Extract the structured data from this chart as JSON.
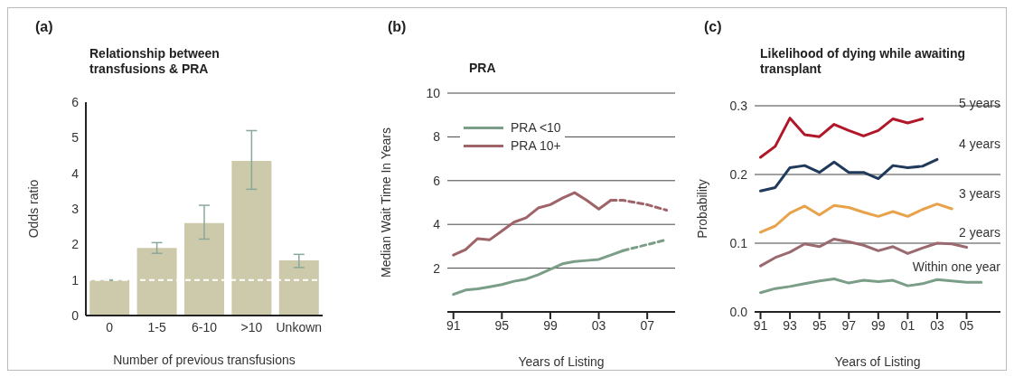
{
  "chart_data": [
    {
      "type": "bar",
      "annotations": [
        "(a)"
      ],
      "title": "Relationship between transfusions & PRA",
      "xlabel": "Number of previous transfusions",
      "ylabel": "Odds ratio",
      "categories": [
        "0",
        "1-5",
        "6-10",
        ">10",
        "Unkown"
      ],
      "values": [
        1.0,
        1.9,
        2.6,
        4.35,
        1.55
      ],
      "color": "#cccaaa",
      "errors": [
        null,
        [
          1.75,
          2.05
        ],
        [
          2.15,
          3.1
        ],
        [
          3.55,
          5.2
        ],
        [
          1.35,
          1.72
        ]
      ],
      "ylim": [
        0,
        6
      ],
      "yticks": [
        0,
        1,
        2,
        3,
        4,
        5,
        6
      ],
      "ref_lines": [
        {
          "axis": "y",
          "value": 1,
          "color": "#ffffff",
          "line_style": "dashed"
        }
      ],
      "grid": false,
      "legend": false
    },
    {
      "type": "line",
      "annotations": [
        "(b)"
      ],
      "title": "PRA",
      "xlabel": "Years of Listing",
      "ylabel": "Median Wait Time In Years",
      "series": [
        {
          "name": "PRA <10",
          "color": "#7a9e87",
          "line_style": "solid",
          "x": [
            1991,
            1992,
            1993,
            1994,
            1995,
            1996,
            1997,
            1998,
            1999,
            2000,
            2001,
            2002,
            2003,
            2004,
            2005
          ],
          "values": [
            0.8,
            1.0,
            1.05,
            1.15,
            1.25,
            1.4,
            1.5,
            1.7,
            1.95,
            2.2,
            2.3,
            2.35,
            2.4,
            2.6,
            2.8
          ]
        },
        {
          "color": "#7a9e87",
          "line_style": "dashed",
          "x": [
            2005,
            2008.6
          ],
          "values": [
            2.8,
            3.3
          ]
        },
        {
          "name": "PRA 10+",
          "color": "#9e6468",
          "line_style": "solid",
          "x": [
            1991,
            1992,
            1993,
            1994,
            1995,
            1996,
            1997,
            1998,
            1999,
            2000,
            2001,
            2002,
            2003,
            2004
          ],
          "values": [
            2.6,
            2.85,
            3.35,
            3.3,
            3.7,
            4.1,
            4.3,
            4.75,
            4.9,
            5.2,
            5.45,
            5.1,
            4.7,
            5.1
          ]
        },
        {
          "color": "#9e6468",
          "line_style": "dashed",
          "x": [
            2004,
            2005,
            2006,
            2007,
            2008.6
          ],
          "values": [
            5.1,
            5.1,
            5.0,
            4.9,
            4.65
          ]
        }
      ],
      "xlim": [
        1990.5,
        2009.3
      ],
      "xticks": [
        {
          "value": 1991,
          "label": "91"
        },
        {
          "value": 1995,
          "label": "95"
        },
        {
          "value": 1999,
          "label": "99"
        },
        {
          "value": 2003,
          "label": "03"
        },
        {
          "value": 2007,
          "label": "07"
        }
      ],
      "ylim": [
        0,
        10
      ],
      "yticks": [
        2,
        4,
        6,
        8,
        10
      ],
      "grid": "y",
      "legend": "top left",
      "marker": "none"
    },
    {
      "type": "line",
      "annotations": [
        "(c)"
      ],
      "title": "Likelihood of dying while awaiting transplant",
      "xlabel": "Years of Listing",
      "ylabel": "Probability",
      "series": [
        {
          "name": "5 years",
          "color": "#b0182a",
          "x": [
            1991,
            1992,
            1993,
            1994,
            1995,
            1996,
            1997,
            1998,
            1999,
            2000,
            2001,
            2002
          ],
          "values": [
            0.225,
            0.241,
            0.282,
            0.258,
            0.255,
            0.273,
            0.264,
            0.256,
            0.264,
            0.281,
            0.275,
            0.281
          ]
        },
        {
          "name": "4 years",
          "color": "#1f3a5a",
          "x": [
            1991,
            1992,
            1993,
            1994,
            1995,
            1996,
            1997,
            1998,
            1999,
            2000,
            2001,
            2002,
            2003
          ],
          "values": [
            0.176,
            0.181,
            0.21,
            0.213,
            0.203,
            0.218,
            0.203,
            0.203,
            0.194,
            0.213,
            0.21,
            0.212,
            0.222
          ]
        },
        {
          "name": "3 years",
          "color": "#e8a24a",
          "x": [
            1991,
            1992,
            1993,
            1994,
            1995,
            1996,
            1997,
            1998,
            1999,
            2000,
            2001,
            2002,
            2003,
            2004
          ],
          "values": [
            0.116,
            0.125,
            0.144,
            0.154,
            0.141,
            0.155,
            0.152,
            0.145,
            0.139,
            0.146,
            0.139,
            0.149,
            0.157,
            0.15
          ]
        },
        {
          "name": "2 years",
          "color": "#9a6a70",
          "x": [
            1991,
            1992,
            1993,
            1994,
            1995,
            1996,
            1997,
            1998,
            1999,
            2000,
            2001,
            2002,
            2003,
            2004,
            2005
          ],
          "values": [
            0.067,
            0.079,
            0.087,
            0.099,
            0.095,
            0.106,
            0.102,
            0.097,
            0.089,
            0.095,
            0.085,
            0.093,
            0.1,
            0.099,
            0.094
          ]
        },
        {
          "name": "Within one year",
          "color": "#7a9e87",
          "x": [
            1991,
            1992,
            1993,
            1994,
            1995,
            1996,
            1997,
            1998,
            1999,
            2000,
            2001,
            2002,
            2003,
            2004,
            2005,
            2006
          ],
          "values": [
            0.028,
            0.034,
            0.037,
            0.041,
            0.045,
            0.048,
            0.042,
            0.046,
            0.044,
            0.046,
            0.038,
            0.041,
            0.047,
            0.045,
            0.043,
            0.043
          ]
        }
      ],
      "xlim": [
        1990.6,
        2007.3
      ],
      "xticks": [
        {
          "value": 1991,
          "label": "91"
        },
        {
          "value": 1993,
          "label": "93"
        },
        {
          "value": 1995,
          "label": "95"
        },
        {
          "value": 1997,
          "label": "97"
        },
        {
          "value": 1999,
          "label": "99"
        },
        {
          "value": 2001,
          "label": "01"
        },
        {
          "value": 2003,
          "label": "03"
        },
        {
          "value": 2005,
          "label": "05"
        }
      ],
      "ylim": [
        0,
        0.3
      ],
      "yticks": [
        {
          "value": 0,
          "label": "0.0"
        },
        {
          "value": 0.1,
          "label": "0.1"
        },
        {
          "value": 0.2,
          "label": "0.2"
        },
        {
          "value": 0.3,
          "label": "0.3"
        }
      ],
      "grid": "y",
      "legend": false,
      "marker": "none"
    }
  ]
}
